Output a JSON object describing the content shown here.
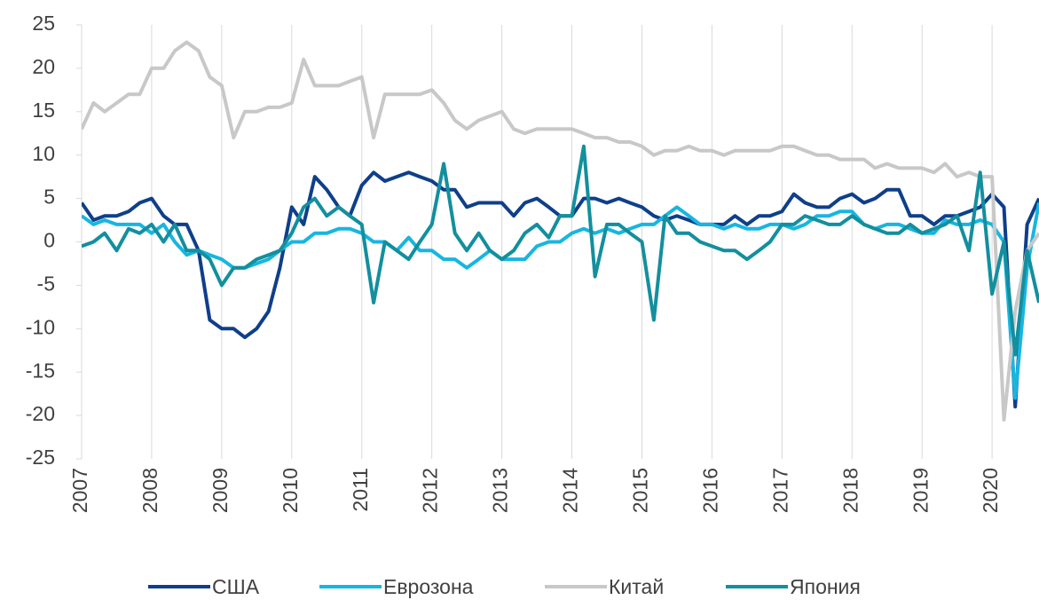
{
  "chart_data": {
    "type": "line",
    "x": [
      2007,
      2007.17,
      2007.33,
      2007.5,
      2007.67,
      2007.83,
      2008,
      2008.17,
      2008.33,
      2008.5,
      2008.67,
      2008.83,
      2009,
      2009.17,
      2009.33,
      2009.5,
      2009.67,
      2009.83,
      2010,
      2010.17,
      2010.33,
      2010.5,
      2010.67,
      2010.83,
      2011,
      2011.17,
      2011.33,
      2011.5,
      2011.67,
      2011.83,
      2012,
      2012.17,
      2012.33,
      2012.5,
      2012.67,
      2012.83,
      2013,
      2013.17,
      2013.33,
      2013.5,
      2013.67,
      2013.83,
      2014,
      2014.17,
      2014.33,
      2014.5,
      2014.67,
      2014.83,
      2015,
      2015.17,
      2015.33,
      2015.5,
      2015.67,
      2015.83,
      2016,
      2016.17,
      2016.33,
      2016.5,
      2016.67,
      2016.83,
      2017,
      2017.17,
      2017.33,
      2017.5,
      2017.67,
      2017.83,
      2018,
      2018.17,
      2018.33,
      2018.5,
      2018.67,
      2018.83,
      2019,
      2019.17,
      2019.33,
      2019.5,
      2019.67,
      2019.83,
      2020,
      2020.17,
      2020.33,
      2020.5,
      2020.67
    ],
    "series": [
      {
        "name": "США",
        "color": "#0f3f8a",
        "values": [
          4.5,
          2.5,
          3,
          3,
          3.5,
          4.5,
          5,
          3,
          2,
          2,
          -1,
          -9,
          -10,
          -10,
          -11,
          -10,
          -8,
          -3,
          4,
          2,
          7.5,
          6,
          4,
          3,
          6.5,
          8,
          7,
          7.5,
          8,
          7.5,
          7,
          6,
          6,
          4,
          4.5,
          4.5,
          4.5,
          3,
          4.5,
          5,
          4,
          3,
          3,
          5,
          5,
          4.5,
          5,
          4.5,
          4,
          3,
          2.5,
          3,
          2.5,
          2,
          2,
          2,
          3,
          2,
          3,
          3,
          3.5,
          5.5,
          4.5,
          4,
          4,
          5,
          5.5,
          4.5,
          5,
          6,
          6,
          3,
          3,
          2,
          3,
          3,
          3.5,
          4,
          5.5,
          4,
          -19,
          2,
          5
        ]
      },
      {
        "name": "Еврозона",
        "color": "#17b6e0",
        "values": [
          3,
          2,
          2.5,
          2,
          2,
          2,
          1,
          2,
          0,
          -1.5,
          -1,
          -1.5,
          -2,
          -3,
          -3,
          -2.5,
          -2,
          -1,
          0,
          0,
          1,
          1,
          1.5,
          1.5,
          1,
          0,
          0,
          -1,
          0.5,
          -1,
          -1,
          -2,
          -2,
          -3,
          -2,
          -1,
          -2,
          -2,
          -2,
          -0.5,
          0,
          0,
          1,
          1.5,
          1,
          1.5,
          1,
          1.5,
          2,
          2,
          3,
          4,
          3,
          2,
          2,
          1.5,
          2,
          1.5,
          1.5,
          2,
          2,
          1.5,
          2,
          3,
          3,
          3.5,
          3.5,
          2,
          1.5,
          2,
          2,
          1.5,
          1,
          1,
          2.5,
          2,
          2,
          2.5,
          2,
          0,
          -18,
          -3,
          4.5
        ]
      },
      {
        "name": "Китай",
        "color": "#c8c8c8",
        "values": [
          13,
          16,
          15,
          16,
          17,
          17,
          20,
          20,
          22,
          23,
          22,
          19,
          18,
          12,
          15,
          15,
          15.5,
          15.5,
          16,
          21,
          18,
          18,
          18,
          18.5,
          19,
          12,
          17,
          17,
          17,
          17,
          17.5,
          16,
          14,
          13,
          14,
          14.5,
          15,
          13,
          12.5,
          13,
          13,
          13,
          13,
          12.5,
          12,
          12,
          11.5,
          11.5,
          11,
          10,
          10.5,
          10.5,
          11,
          10.5,
          10.5,
          10,
          10.5,
          10.5,
          10.5,
          10.5,
          11,
          11,
          10.5,
          10,
          10,
          9.5,
          9.5,
          9.5,
          8.5,
          9,
          8.5,
          8.5,
          8.5,
          8,
          9,
          7.5,
          8,
          7.5,
          7.5,
          -20.5,
          -8,
          -1,
          1
        ]
      },
      {
        "name": "Япония",
        "color": "#138f9e",
        "values": [
          -0.5,
          0,
          1,
          -1,
          1.5,
          1,
          2,
          0,
          2,
          -1,
          -1,
          -2,
          -5,
          -3,
          -3,
          -2,
          -1.5,
          -1,
          1,
          4,
          5,
          3,
          4,
          3,
          2,
          -7,
          0,
          -1,
          -2,
          0,
          2,
          9,
          1,
          -1,
          1,
          -1,
          -2,
          -1,
          1,
          2,
          0.5,
          3,
          3,
          11,
          -4,
          2,
          2,
          1,
          0,
          -9,
          3,
          1,
          1,
          0,
          -0.5,
          -1,
          -1,
          -2,
          -1,
          0,
          2,
          2,
          3,
          2.5,
          2,
          2,
          3,
          2,
          1.5,
          1,
          1,
          2,
          1,
          1.5,
          2,
          3,
          -1,
          8,
          -6,
          0,
          -13,
          -1,
          -7
        ]
      }
    ],
    "xlim": [
      2007,
      2020.67
    ],
    "xticks": [
      2007,
      2008,
      2009,
      2010,
      2011,
      2012,
      2013,
      2014,
      2015,
      2016,
      2017,
      2018,
      2019,
      2020
    ],
    "ylim": [
      -25,
      25
    ],
    "yticks": [
      -25,
      -20,
      -15,
      -10,
      -5,
      0,
      5,
      10,
      15,
      20,
      25
    ],
    "grid": true,
    "legend": "bottom"
  }
}
